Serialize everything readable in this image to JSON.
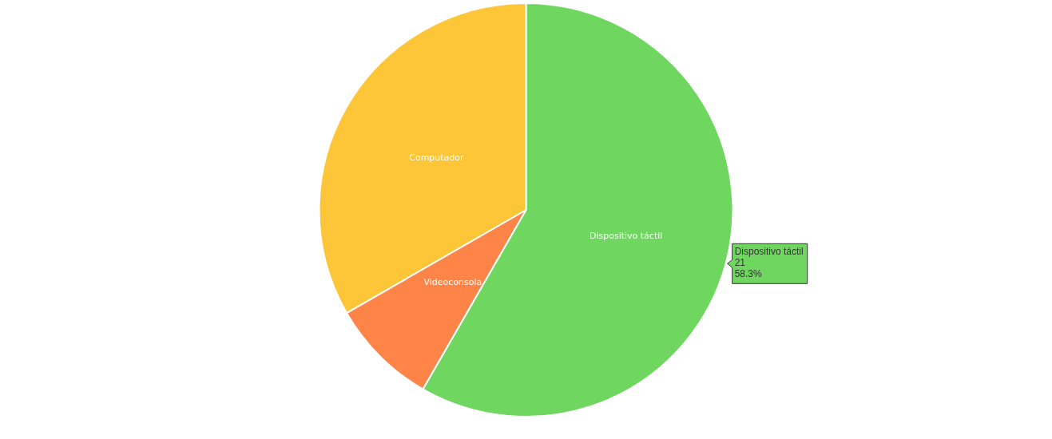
{
  "chart_data": {
    "type": "pie",
    "categories": [
      "Dispositivo táctil",
      "Videoconsola",
      "Computador"
    ],
    "values": [
      58.3,
      8.4,
      33.3
    ],
    "colors": [
      "#6fd65f",
      "#ff8448",
      "#fdc638"
    ],
    "value_labels": [
      "58.3%",
      null,
      null
    ],
    "annotations": [
      "21"
    ],
    "legend": false
  }
}
